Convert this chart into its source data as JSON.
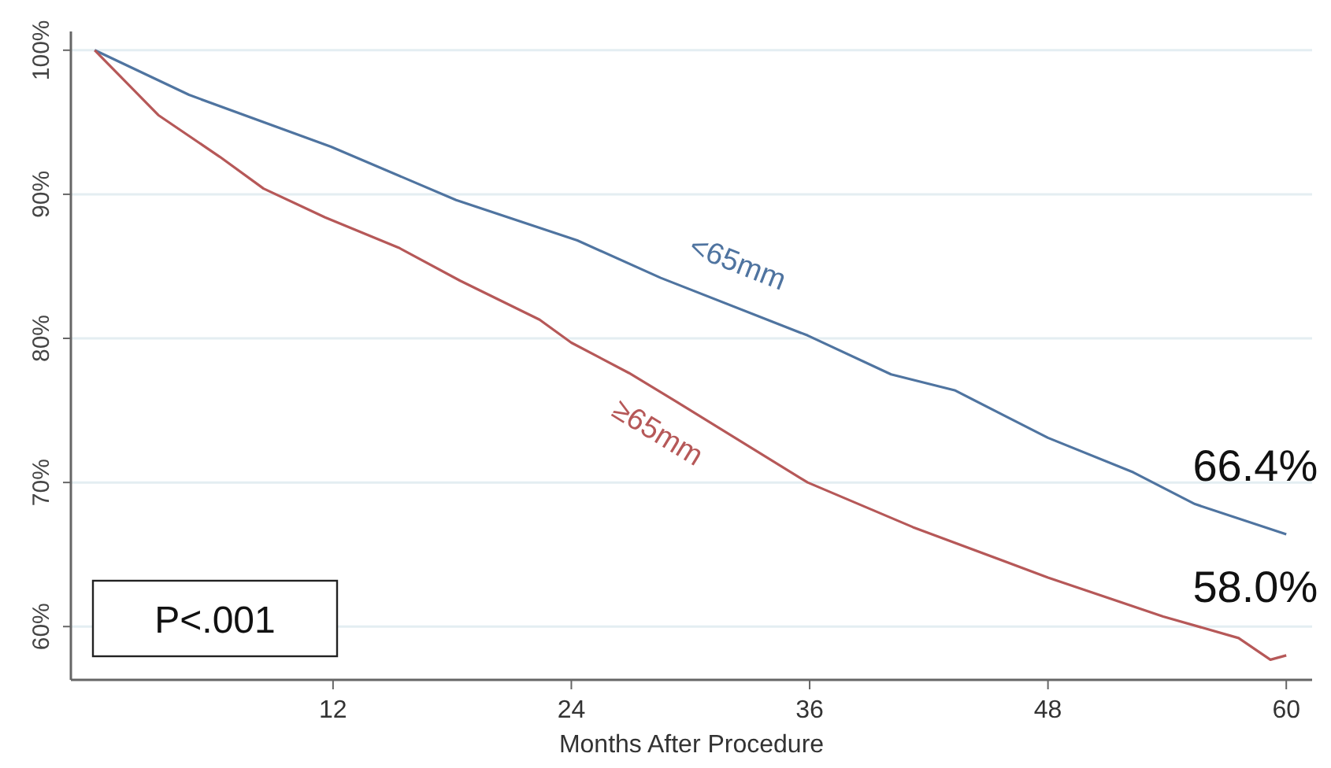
{
  "chart_data": {
    "type": "line",
    "xlabel": "Months After Procedure",
    "xlim": [
      -1.2,
      61.3
    ],
    "ylim": [
      56.3,
      101.3
    ],
    "xticks": [
      12,
      24,
      36,
      48,
      60
    ],
    "yticks": [
      {
        "value": 60,
        "label": "60%"
      },
      {
        "value": 70,
        "label": "70%"
      },
      {
        "value": 80,
        "label": "80%"
      },
      {
        "value": 90,
        "label": "90%"
      },
      {
        "value": 100,
        "label": "100%"
      }
    ],
    "grid": "y",
    "tick_labels": "xy",
    "annotations": [
      "P<.001"
    ],
    "series": [
      {
        "name": "<65mm",
        "color": "#4f74a0",
        "x": [
          0,
          4.75,
          11.9,
          18.2,
          24.3,
          28.5,
          35.9,
          40.1,
          43.3,
          48,
          52.3,
          55.4,
          60
        ],
        "values": [
          100,
          96.9,
          93.3,
          89.6,
          86.8,
          84.2,
          80.2,
          77.5,
          76.4,
          73.1,
          70.7,
          68.5,
          66.4
        ],
        "value_labels": [
          null,
          null,
          null,
          null,
          null,
          null,
          null,
          null,
          null,
          null,
          null,
          null,
          "66.4%"
        ]
      },
      {
        "name": "≥65mm",
        "color": "#b65858",
        "x": [
          0,
          3.2,
          6.3,
          8.5,
          11.6,
          15.3,
          18.4,
          22.4,
          24,
          26.9,
          29.3,
          35.9,
          41.2,
          48,
          53.8,
          57.6,
          59.2,
          60
        ],
        "values": [
          100,
          95.5,
          92.6,
          90.4,
          88.4,
          86.3,
          84,
          81.3,
          79.7,
          77.6,
          75.6,
          70,
          66.9,
          63.4,
          60.7,
          59.2,
          57.7,
          58.0
        ],
        "value_labels": [
          null,
          null,
          null,
          null,
          null,
          null,
          null,
          null,
          null,
          null,
          null,
          null,
          null,
          null,
          null,
          null,
          null,
          "58.0%"
        ]
      }
    ]
  }
}
